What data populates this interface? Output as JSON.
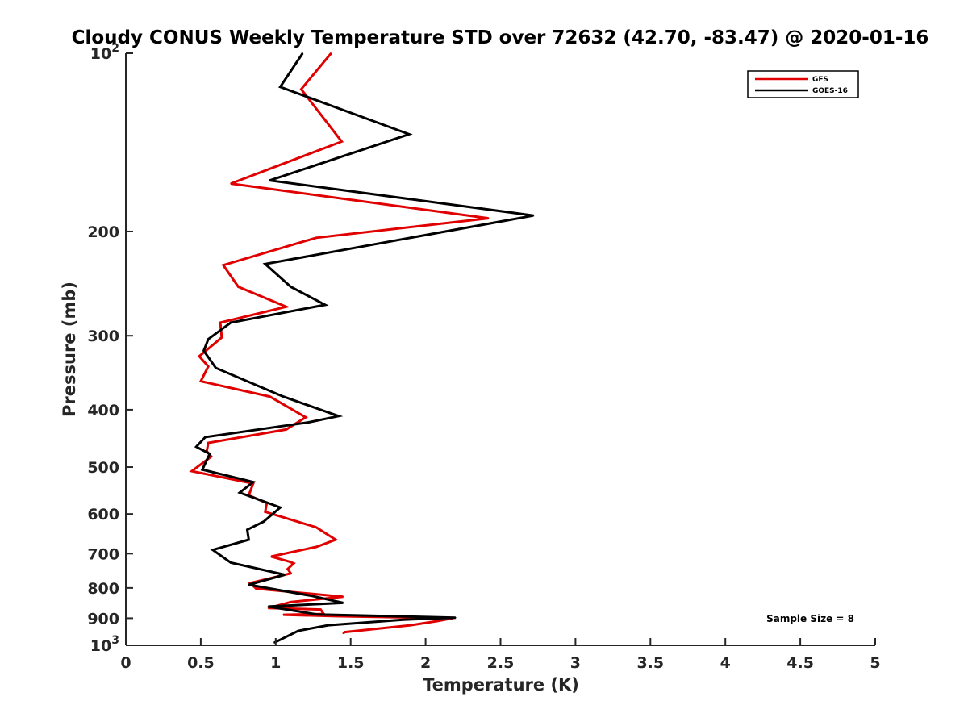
{
  "chart_data": {
    "type": "line",
    "title": "Cloudy CONUS Weekly Temperature STD over 72632 (42.70, -83.47) @ 2020-01-16",
    "xlabel": "Temperature (K)",
    "ylabel": "Pressure (mb)",
    "xlim": [
      0,
      5
    ],
    "ylim": [
      100,
      1000
    ],
    "y_scale": "log",
    "y_reversed": true,
    "grid": false,
    "legend_position": "top-right",
    "x_ticks": [
      0,
      0.5,
      1,
      1.5,
      2,
      2.5,
      3,
      3.5,
      4,
      4.5,
      5
    ],
    "x_tick_labels": [
      "0",
      "0.5",
      "1",
      "1.5",
      "2",
      "2.5",
      "3",
      "3.5",
      "4",
      "4.5",
      "5"
    ],
    "y_ticks": [
      100,
      200,
      300,
      400,
      500,
      600,
      700,
      800,
      900,
      1000
    ],
    "y_tick_labels": [
      {
        "base": "10",
        "exp": "2"
      },
      {
        "base": "200",
        "exp": ""
      },
      {
        "base": "300",
        "exp": ""
      },
      {
        "base": "400",
        "exp": ""
      },
      {
        "base": "500",
        "exp": ""
      },
      {
        "base": "600",
        "exp": ""
      },
      {
        "base": "700",
        "exp": ""
      },
      {
        "base": "800",
        "exp": ""
      },
      {
        "base": "900",
        "exp": ""
      },
      {
        "base": "10",
        "exp": "3"
      }
    ],
    "annotation": "Sample Size = 8",
    "series": [
      {
        "name": "GFS",
        "color": "#e00000",
        "points": [
          [
            1.37,
            100
          ],
          [
            1.17,
            115
          ],
          [
            1.44,
            141
          ],
          [
            0.7,
            166
          ],
          [
            2.42,
            190
          ],
          [
            1.27,
            205
          ],
          [
            0.65,
            228
          ],
          [
            0.75,
            248
          ],
          [
            1.07,
            268
          ],
          [
            0.63,
            285
          ],
          [
            0.64,
            302
          ],
          [
            0.49,
            325
          ],
          [
            0.55,
            338
          ],
          [
            0.5,
            358
          ],
          [
            0.96,
            380
          ],
          [
            1.2,
            412
          ],
          [
            1.07,
            432
          ],
          [
            0.55,
            455
          ],
          [
            0.54,
            470
          ],
          [
            0.57,
            480
          ],
          [
            0.44,
            508
          ],
          [
            0.85,
            533
          ],
          [
            0.82,
            558
          ],
          [
            0.94,
            575
          ],
          [
            0.93,
            595
          ],
          [
            1.27,
            632
          ],
          [
            1.4,
            663
          ],
          [
            1.27,
            682
          ],
          [
            0.97,
            708
          ],
          [
            1.09,
            722
          ],
          [
            1.12,
            727
          ],
          [
            1.08,
            743
          ],
          [
            1.1,
            756
          ],
          [
            0.83,
            785
          ],
          [
            0.87,
            802
          ],
          [
            1.45,
            828
          ],
          [
            1.1,
            845
          ],
          [
            0.95,
            865
          ],
          [
            1.3,
            870
          ],
          [
            1.32,
            885
          ],
          [
            1.05,
            888
          ],
          [
            1.4,
            893
          ],
          [
            2.18,
            900
          ],
          [
            2.08,
            910
          ],
          [
            1.9,
            925
          ],
          [
            1.46,
            950
          ],
          [
            1.45,
            955
          ]
        ]
      },
      {
        "name": "GOES-16",
        "color": "#000000",
        "points": [
          [
            1.18,
            100
          ],
          [
            1.03,
            114
          ],
          [
            1.89,
            137
          ],
          [
            0.96,
            164
          ],
          [
            2.72,
            188
          ],
          [
            0.93,
            227
          ],
          [
            1.1,
            248
          ],
          [
            1.33,
            266
          ],
          [
            0.7,
            285
          ],
          [
            0.55,
            304
          ],
          [
            0.52,
            318
          ],
          [
            0.6,
            340
          ],
          [
            1.05,
            380
          ],
          [
            1.42,
            410
          ],
          [
            1.22,
            420
          ],
          [
            0.53,
            445
          ],
          [
            0.47,
            462
          ],
          [
            0.56,
            475
          ],
          [
            0.51,
            505
          ],
          [
            0.85,
            530
          ],
          [
            0.76,
            552
          ],
          [
            1.03,
            585
          ],
          [
            0.92,
            618
          ],
          [
            0.81,
            638
          ],
          [
            0.82,
            663
          ],
          [
            0.58,
            690
          ],
          [
            0.7,
            725
          ],
          [
            1.06,
            760
          ],
          [
            0.82,
            790
          ],
          [
            1.24,
            825
          ],
          [
            1.45,
            848
          ],
          [
            0.95,
            860
          ],
          [
            1.28,
            887
          ],
          [
            2.2,
            898
          ],
          [
            1.85,
            905
          ],
          [
            1.35,
            925
          ],
          [
            1.15,
            945
          ],
          [
            0.99,
            990
          ]
        ]
      }
    ]
  }
}
